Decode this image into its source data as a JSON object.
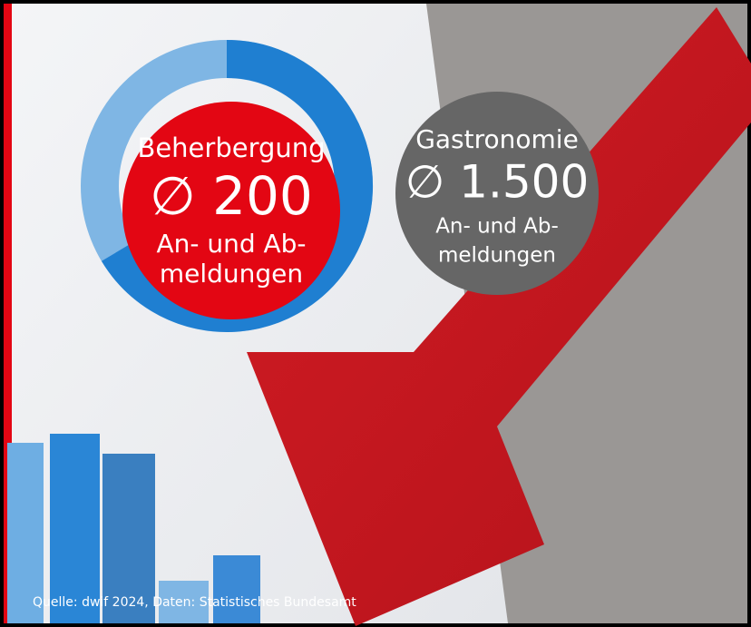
{
  "beherbergung": {
    "title": "Beherbergung",
    "average": "∅ 200",
    "line1": "An- und Ab-",
    "line2": "meldungen"
  },
  "gastronomie": {
    "title": "Gastronomie",
    "average": "∅ 1.500",
    "line1": "An- und Ab-",
    "line2": "meldungen"
  },
  "source": "Quelle: dwif 2024, Daten: Statistisches Bundesamt"
}
